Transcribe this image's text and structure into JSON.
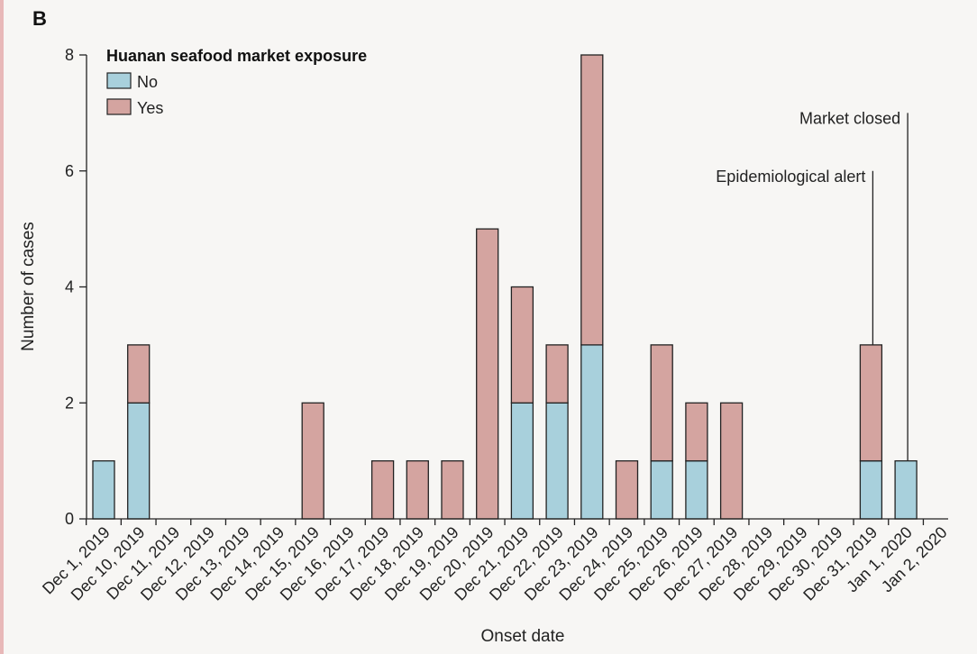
{
  "chart_data": {
    "type": "bar",
    "stacked": true,
    "panel_label": "B",
    "xlabel": "Onset date",
    "ylabel": "Number of cases",
    "ylim": [
      0,
      8
    ],
    "yticks": [
      0,
      2,
      4,
      6,
      8
    ],
    "categories": [
      "Dec 1, 2019",
      "Dec 10, 2019",
      "Dec 11, 2019",
      "Dec 12, 2019",
      "Dec 13, 2019",
      "Dec 14, 2019",
      "Dec 15, 2019",
      "Dec 16, 2019",
      "Dec 17, 2019",
      "Dec 18, 2019",
      "Dec 19, 2019",
      "Dec 20, 2019",
      "Dec 21, 2019",
      "Dec 22, 2019",
      "Dec 23, 2019",
      "Dec 24, 2019",
      "Dec 25, 2019",
      "Dec 26, 2019",
      "Dec 27, 2019",
      "Dec 28, 2019",
      "Dec 29, 2019",
      "Dec 30, 2019",
      "Dec 31, 2019",
      "Jan 1, 2020",
      "Jan 2, 2020"
    ],
    "legend_title": "Huanan seafood market exposure",
    "legend_position": "top-left",
    "series": [
      {
        "name": "No",
        "color": "#a8d0dc",
        "values": [
          1,
          2,
          0,
          0,
          0,
          0,
          0,
          0,
          0,
          0,
          0,
          0,
          2,
          2,
          3,
          0,
          1,
          1,
          0,
          0,
          0,
          0,
          1,
          1,
          0
        ]
      },
      {
        "name": "Yes",
        "color": "#d4a4a0",
        "values": [
          0,
          1,
          0,
          0,
          0,
          0,
          2,
          0,
          1,
          1,
          1,
          5,
          2,
          1,
          5,
          1,
          2,
          1,
          2,
          0,
          0,
          0,
          2,
          0,
          0
        ]
      }
    ],
    "annotations": [
      {
        "text": "Epidemiological alert",
        "category": "Dec 31, 2019",
        "y": 6
      },
      {
        "text": "Market closed",
        "category": "Jan 1, 2020",
        "y": 7
      }
    ],
    "grid": false
  }
}
